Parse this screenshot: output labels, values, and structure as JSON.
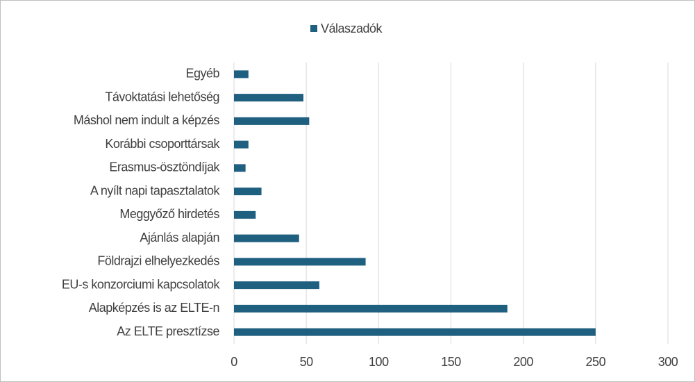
{
  "chart_data": {
    "type": "bar",
    "orientation": "horizontal",
    "categories": [
      "Egyéb",
      "Távoktatási lehetőség",
      "Máshol nem indult a képzés",
      "Korábbi csoporttársak",
      "Erasmus-ösztöndíjak",
      "A nyílt napi tapasztalatok",
      "Meggyőző hirdetés",
      "Ajánlás alapján",
      "Földrajzi elhelyezkedés",
      "EU-s konzorciumi kapcsolatok",
      "Alapképzés is az ELTE-n",
      "Az ELTE presztízse"
    ],
    "series": [
      {
        "name": "Válaszadók",
        "color": "#1f5f7f",
        "values": [
          10,
          48,
          52,
          10,
          8,
          19,
          15,
          45,
          91,
          59,
          189,
          250
        ]
      }
    ],
    "xlim": [
      0,
      300
    ],
    "xticks": [
      0,
      50,
      100,
      150,
      200,
      250,
      300
    ],
    "grid": true,
    "legend": "top"
  }
}
